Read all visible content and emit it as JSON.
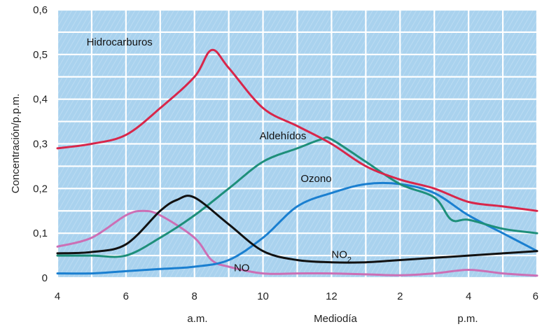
{
  "chart_data": {
    "type": "line",
    "title": "",
    "ylabel": "Concentración/p.p.m.",
    "xlabel": "Mediodía",
    "xlabel_left": "a.m.",
    "xlabel_right": "p.m.",
    "x_ticks": [
      {
        "x": 0,
        "label": "4"
      },
      {
        "x": 2,
        "label": "6"
      },
      {
        "x": 4,
        "label": "8"
      },
      {
        "x": 6,
        "label": "10"
      },
      {
        "x": 8,
        "label": "12"
      },
      {
        "x": 10,
        "label": "2"
      },
      {
        "x": 12,
        "label": "4"
      },
      {
        "x": 14,
        "label": "6"
      }
    ],
    "y_ticks": [
      {
        "y": 0,
        "label": "0"
      },
      {
        "y": 0.1,
        "label": "0,1"
      },
      {
        "y": 0.2,
        "label": "0,2"
      },
      {
        "y": 0.3,
        "label": "0,3"
      },
      {
        "y": 0.4,
        "label": "0,4"
      },
      {
        "y": 0.5,
        "label": "0,5"
      },
      {
        "y": 0.6,
        "label": "0,6"
      }
    ],
    "xlim": [
      0,
      14
    ],
    "ylim": [
      0,
      0.6
    ],
    "grid": true,
    "background": "#a9d2ee",
    "series": [
      {
        "name": "Hidrocarburos",
        "color": "#d8264a",
        "points": [
          [
            0,
            0.29
          ],
          [
            1,
            0.3
          ],
          [
            2,
            0.32
          ],
          [
            3,
            0.38
          ],
          [
            4,
            0.45
          ],
          [
            4.5,
            0.51
          ],
          [
            5,
            0.47
          ],
          [
            6,
            0.38
          ],
          [
            7,
            0.34
          ],
          [
            8,
            0.3
          ],
          [
            9,
            0.25
          ],
          [
            10,
            0.22
          ],
          [
            11,
            0.2
          ],
          [
            12,
            0.17
          ],
          [
            13,
            0.16
          ],
          [
            14,
            0.15
          ]
        ]
      },
      {
        "name": "Aldehídos",
        "color": "#1e8f7a",
        "points": [
          [
            0,
            0.05
          ],
          [
            1,
            0.05
          ],
          [
            2,
            0.05
          ],
          [
            3,
            0.09
          ],
          [
            4,
            0.14
          ],
          [
            5,
            0.2
          ],
          [
            6,
            0.26
          ],
          [
            7,
            0.29
          ],
          [
            7.7,
            0.31
          ],
          [
            8,
            0.31
          ],
          [
            9,
            0.26
          ],
          [
            10,
            0.21
          ],
          [
            11,
            0.18
          ],
          [
            11.5,
            0.13
          ],
          [
            12,
            0.13
          ],
          [
            13,
            0.11
          ],
          [
            14,
            0.1
          ]
        ]
      },
      {
        "name": "Ozono",
        "color": "#1a7fd0",
        "points": [
          [
            0,
            0.01
          ],
          [
            1,
            0.01
          ],
          [
            2,
            0.015
          ],
          [
            3,
            0.02
          ],
          [
            4,
            0.025
          ],
          [
            5,
            0.04
          ],
          [
            6,
            0.09
          ],
          [
            7,
            0.16
          ],
          [
            8,
            0.19
          ],
          [
            9,
            0.21
          ],
          [
            10,
            0.21
          ],
          [
            11,
            0.19
          ],
          [
            12,
            0.14
          ],
          [
            13,
            0.1
          ],
          [
            14,
            0.06
          ]
        ]
      },
      {
        "name": "NO₂",
        "color": "#111111",
        "points": [
          [
            0,
            0.055
          ],
          [
            1,
            0.058
          ],
          [
            2,
            0.075
          ],
          [
            3,
            0.15
          ],
          [
            3.5,
            0.175
          ],
          [
            4,
            0.18
          ],
          [
            5,
            0.12
          ],
          [
            6,
            0.06
          ],
          [
            7,
            0.04
          ],
          [
            8,
            0.035
          ],
          [
            9,
            0.035
          ],
          [
            10,
            0.04
          ],
          [
            11,
            0.045
          ],
          [
            12,
            0.05
          ],
          [
            13,
            0.055
          ],
          [
            14,
            0.06
          ]
        ]
      },
      {
        "name": "NO",
        "color": "#cc6fb5",
        "points": [
          [
            0,
            0.07
          ],
          [
            1,
            0.09
          ],
          [
            2,
            0.14
          ],
          [
            2.5,
            0.15
          ],
          [
            3,
            0.14
          ],
          [
            4,
            0.09
          ],
          [
            4.5,
            0.04
          ],
          [
            5,
            0.025
          ],
          [
            6,
            0.01
          ],
          [
            7,
            0.01
          ],
          [
            8,
            0.01
          ],
          [
            9,
            0.008
          ],
          [
            10,
            0.006
          ],
          [
            11,
            0.01
          ],
          [
            12,
            0.018
          ],
          [
            13,
            0.01
          ],
          [
            14,
            0.005
          ]
        ]
      }
    ],
    "labels": [
      {
        "text": "Hidrocarburos",
        "x": 0.85,
        "y": 0.52
      },
      {
        "text": "Aldehídos",
        "x": 5.9,
        "y": 0.31
      },
      {
        "text": "Ozono",
        "x": 7.1,
        "y": 0.215
      },
      {
        "text": "NO",
        "x": 5.15,
        "y": 0.015
      },
      {
        "text": "NO",
        "sub": "2",
        "x": 8.0,
        "y": 0.045
      }
    ]
  }
}
